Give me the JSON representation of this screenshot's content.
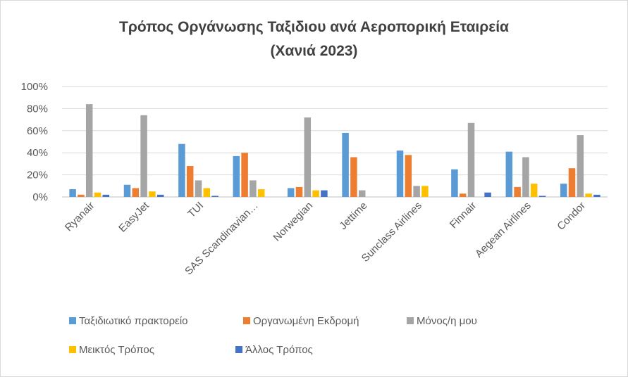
{
  "chart_data": {
    "type": "bar",
    "title": "Τρόπος Οργάνωσης Ταξιδιου ανά Αεροπορική Εταιρεία",
    "subtitle": "(Χανιά 2023)",
    "categories": [
      "Ryanair",
      "EasyJet",
      "TUI",
      "SAS Scandinavian…",
      "Norwegian",
      "Jettime",
      "Sunclass Airlines",
      "Finnair",
      "Aegean Airlines",
      "Condor"
    ],
    "ylim": [
      0,
      100
    ],
    "yticks": [
      "0%",
      "20%",
      "40%",
      "60%",
      "80%",
      "100%"
    ],
    "grid": true,
    "legend_position": "bottom",
    "series": [
      {
        "name": "Ταξιδιωτικό πρακτορείο",
        "color": "#5b9bd5",
        "values": [
          7,
          11,
          48,
          37,
          8,
          58,
          42,
          25,
          41,
          12
        ]
      },
      {
        "name": "Οργανωμένη Εκδρομή",
        "color": "#ed7d31",
        "values": [
          2,
          8,
          28,
          40,
          9,
          36,
          38,
          3,
          9,
          26
        ]
      },
      {
        "name": "Μόνος/η μου",
        "color": "#a5a5a5",
        "values": [
          84,
          74,
          15,
          15,
          72,
          6,
          10,
          67,
          36,
          56
        ]
      },
      {
        "name": "Μεικτός Τρόπος",
        "color": "#ffc000",
        "values": [
          4,
          5,
          8,
          7,
          6,
          0,
          10,
          0,
          12,
          3
        ]
      },
      {
        "name": "Άλλος Τρόπος",
        "color": "#4472c4",
        "values": [
          2,
          2,
          1,
          0,
          6,
          0,
          0,
          4,
          1,
          2
        ]
      }
    ]
  }
}
